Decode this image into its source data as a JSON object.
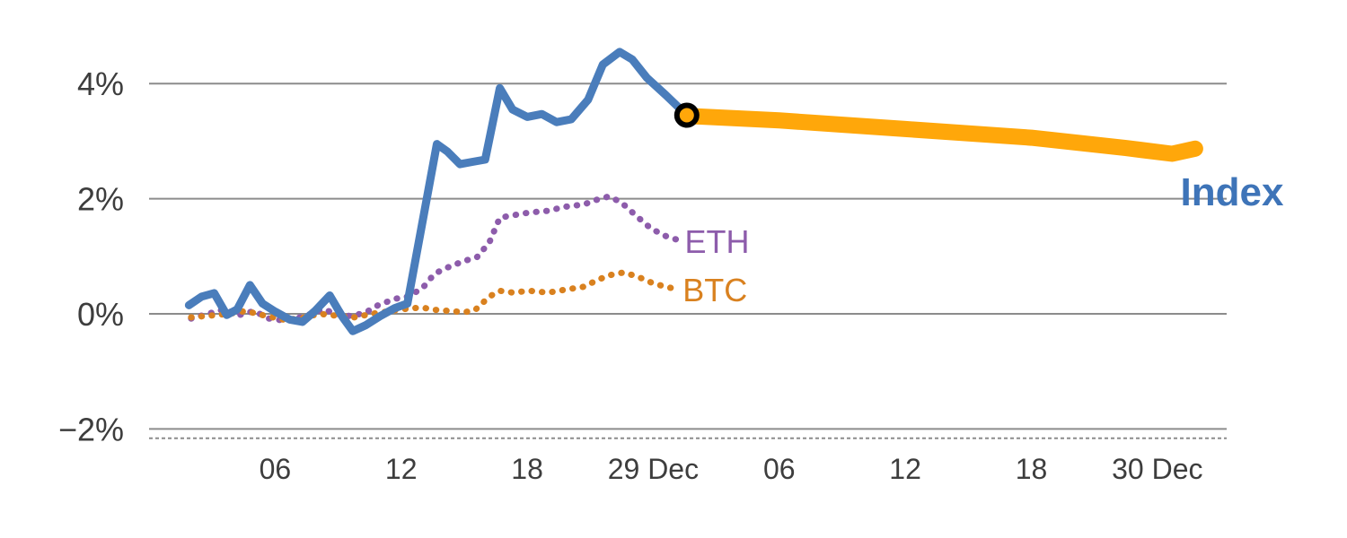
{
  "figure": {
    "background": "#ffffff"
  },
  "chart_data": {
    "type": "line",
    "title": "",
    "description": "Intraday percent-change lines for a crypto Index (solid blue, continuing as thick amber forecast band after a marker), ETH (dotted purple) and BTC (dotted orange).",
    "axis_text_color": "#3d3d3d",
    "x_axis": {
      "unit": "hours",
      "xlim": [
        0,
        51.3
      ],
      "ticks": [
        {
          "value": 6,
          "label": "06"
        },
        {
          "value": 12,
          "label": "12"
        },
        {
          "value": 18,
          "label": "18"
        },
        {
          "value": 24,
          "label": "29 Dec"
        },
        {
          "value": 30,
          "label": "06"
        },
        {
          "value": 36,
          "label": "12"
        },
        {
          "value": 42,
          "label": "18"
        },
        {
          "value": 48,
          "label": "30 Dec"
        }
      ]
    },
    "y_axis": {
      "unit": "percent",
      "ylim": [
        -2.18,
        5.14
      ],
      "grid": true,
      "grid_color": "#8c8c8c",
      "ticks": [
        {
          "value": 4,
          "label": "4%"
        },
        {
          "value": 2,
          "label": "2%"
        },
        {
          "value": 0,
          "label": "0%"
        },
        {
          "value": -2,
          "label": "−2%"
        }
      ]
    },
    "baseline": {
      "y": -2.16,
      "style": "dashed",
      "color": "#8c8c8c"
    },
    "series": [
      {
        "id": "eth",
        "name": "ETH",
        "style": "dotted",
        "color": "#8d5cab",
        "width": 7,
        "points": [
          [
            2.0,
            -0.08
          ],
          [
            3.0,
            0.02
          ],
          [
            3.6,
            0.08
          ],
          [
            4.3,
            -0.02
          ],
          [
            5.0,
            0.05
          ],
          [
            5.7,
            -0.08
          ],
          [
            6.5,
            -0.12
          ],
          [
            7.4,
            -0.04
          ],
          [
            8.3,
            0.08
          ],
          [
            8.9,
            0.0
          ],
          [
            9.6,
            -0.04
          ],
          [
            10.3,
            0.02
          ],
          [
            10.9,
            0.15
          ],
          [
            11.7,
            0.26
          ],
          [
            12.3,
            0.3
          ],
          [
            13.0,
            0.44
          ],
          [
            13.6,
            0.7
          ],
          [
            14.3,
            0.82
          ],
          [
            15.0,
            0.92
          ],
          [
            15.6,
            0.98
          ],
          [
            16.2,
            1.24
          ],
          [
            16.7,
            1.67
          ],
          [
            17.3,
            1.71
          ],
          [
            18.1,
            1.76
          ],
          [
            19.0,
            1.79
          ],
          [
            19.8,
            1.86
          ],
          [
            20.7,
            1.9
          ],
          [
            21.3,
            1.98
          ],
          [
            21.9,
            2.04
          ],
          [
            22.5,
            1.93
          ],
          [
            23.2,
            1.7
          ],
          [
            23.9,
            1.48
          ],
          [
            24.6,
            1.35
          ],
          [
            25.2,
            1.28
          ]
        ]
      },
      {
        "id": "btc",
        "name": "BTC",
        "style": "dotted",
        "color": "#d9811f",
        "width": 7,
        "points": [
          [
            2.0,
            -0.06
          ],
          [
            2.9,
            -0.03
          ],
          [
            3.8,
            0.0
          ],
          [
            4.6,
            0.05
          ],
          [
            5.5,
            -0.03
          ],
          [
            6.4,
            -0.1
          ],
          [
            7.2,
            -0.08
          ],
          [
            8.1,
            0.0
          ],
          [
            8.9,
            -0.03
          ],
          [
            9.8,
            -0.06
          ],
          [
            10.6,
            0.0
          ],
          [
            11.5,
            0.05
          ],
          [
            12.3,
            0.09
          ],
          [
            13.0,
            0.11
          ],
          [
            13.6,
            0.07
          ],
          [
            14.3,
            0.05
          ],
          [
            15.0,
            0.03
          ],
          [
            15.5,
            0.06
          ],
          [
            16.2,
            0.3
          ],
          [
            16.7,
            0.4
          ],
          [
            17.3,
            0.37
          ],
          [
            18.1,
            0.4
          ],
          [
            19.0,
            0.37
          ],
          [
            19.8,
            0.42
          ],
          [
            20.7,
            0.47
          ],
          [
            21.3,
            0.58
          ],
          [
            21.9,
            0.67
          ],
          [
            22.6,
            0.72
          ],
          [
            23.3,
            0.64
          ],
          [
            24.0,
            0.53
          ],
          [
            24.7,
            0.46
          ],
          [
            25.2,
            0.43
          ]
        ]
      },
      {
        "id": "index",
        "name": "Index",
        "style": "solid",
        "color": "#4a7dbb",
        "width": 9,
        "points": [
          [
            1.9,
            0.15
          ],
          [
            2.5,
            0.3
          ],
          [
            3.1,
            0.36
          ],
          [
            3.7,
            -0.02
          ],
          [
            4.2,
            0.08
          ],
          [
            4.8,
            0.5
          ],
          [
            5.4,
            0.18
          ],
          [
            6.0,
            0.04
          ],
          [
            6.7,
            -0.1
          ],
          [
            7.3,
            -0.14
          ],
          [
            7.9,
            0.05
          ],
          [
            8.6,
            0.32
          ],
          [
            9.2,
            -0.05
          ],
          [
            9.7,
            -0.3
          ],
          [
            10.3,
            -0.2
          ],
          [
            11.0,
            -0.04
          ],
          [
            11.7,
            0.1
          ],
          [
            12.3,
            0.18
          ],
          [
            13.7,
            2.95
          ],
          [
            14.2,
            2.82
          ],
          [
            14.8,
            2.6
          ],
          [
            15.4,
            2.64
          ],
          [
            16.0,
            2.68
          ],
          [
            16.7,
            3.92
          ],
          [
            17.3,
            3.55
          ],
          [
            18.0,
            3.42
          ],
          [
            18.7,
            3.47
          ],
          [
            19.4,
            3.33
          ],
          [
            20.1,
            3.38
          ],
          [
            20.9,
            3.72
          ],
          [
            21.6,
            4.33
          ],
          [
            22.4,
            4.55
          ],
          [
            23.0,
            4.42
          ],
          [
            23.7,
            4.1
          ],
          [
            24.6,
            3.8
          ],
          [
            25.6,
            3.45
          ]
        ]
      },
      {
        "id": "index-forecast",
        "name": "Index (forecast)",
        "style": "solid",
        "color": "#ffa70a",
        "width": 18,
        "points": [
          [
            25.6,
            3.44
          ],
          [
            30,
            3.36
          ],
          [
            36,
            3.21
          ],
          [
            42,
            3.06
          ],
          [
            46.5,
            2.88
          ],
          [
            48.7,
            2.78
          ],
          [
            49.8,
            2.87
          ]
        ]
      }
    ],
    "marker": {
      "x": 25.6,
      "y": 3.45,
      "radius": 11,
      "fill": "#ffa70a",
      "ring_color": "#000000",
      "ring_width": 6
    },
    "labels": [
      {
        "id": "index",
        "text": "Index",
        "x": 49.1,
        "y": 2.1,
        "color": "#3e74b8",
        "weight": "bold",
        "size": 44
      },
      {
        "id": "eth",
        "text": "ETH",
        "x": 25.5,
        "y": 1.24,
        "color": "#8d5cab",
        "weight": "normal",
        "size": 36
      },
      {
        "id": "btc",
        "text": "BTC",
        "x": 25.4,
        "y": 0.4,
        "color": "#d9811f",
        "weight": "normal",
        "size": 36
      }
    ]
  }
}
